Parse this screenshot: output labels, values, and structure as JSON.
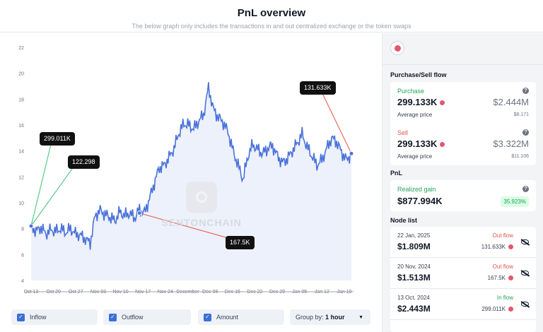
{
  "header": {
    "title": "PnL overview",
    "subtitle": "The below graph only includes the transactions in and out centralized exchange or the token swaps"
  },
  "chart_data": {
    "type": "area",
    "title": "",
    "xlabel": "",
    "ylabel": "",
    "ylim": [
      4,
      22
    ],
    "y_ticks": [
      4,
      6,
      8,
      10,
      12,
      14,
      16,
      18,
      20,
      22
    ],
    "x_ticks": [
      "Oct 13",
      "Oct 20",
      "Oct 27",
      "Nov 03",
      "Nov 10",
      "Nov 17",
      "Nov 24",
      "December",
      "Dec 08",
      "Dec 15",
      "Dec 22",
      "Dec 29",
      "Jan 05",
      "Jan 12",
      "Jan 19"
    ],
    "series": [
      {
        "values": [
          8.2,
          7.8,
          8.1,
          7.6,
          7.9,
          7.8,
          8.0,
          7.7,
          8.0,
          7.6,
          7.5,
          7.2,
          6.9,
          9.0,
          9.4,
          9.1,
          8.9,
          8.6,
          9.3,
          9.0,
          9.2,
          8.8,
          9.5,
          9.2,
          10.3,
          11.5,
          12.7,
          12.9,
          13.5,
          14.2,
          15.4,
          16.1,
          16.0,
          15.7,
          16.3,
          16.8,
          18.9,
          17.2,
          16.6,
          16.2,
          15.4,
          14.0,
          12.9,
          11.8,
          13.6,
          14.5,
          14.1,
          13.8,
          14.2,
          14.4,
          13.6,
          13.1,
          13.4,
          14.0,
          14.6,
          15.3,
          14.3,
          13.6,
          12.9,
          13.3,
          14.2,
          15.0,
          14.7,
          13.9,
          13.3,
          13.8
        ],
        "color": "#4a72d9"
      }
    ],
    "markers": [
      {
        "label": "299.011K",
        "type": "inflow",
        "color": "#5cc98b",
        "x_index": 0,
        "y": 8.2
      },
      {
        "label": "122.298",
        "type": "inflow",
        "color": "#5cc98b",
        "x_index": 0,
        "y": 8.2
      },
      {
        "label": "167.5K",
        "type": "outflow",
        "color": "#e46b63",
        "x_index": 22,
        "y": 9.2
      },
      {
        "label": "131.633K",
        "type": "outflow",
        "color": "#e46b63",
        "x_index": 65,
        "y": 13.8
      }
    ],
    "grid": false,
    "watermark": "SENTONCHAIN"
  },
  "controls": {
    "inflow": "Inflow",
    "outflow": "Outflow",
    "amount": "Amount",
    "groupby_label": "Group by:",
    "groupby_value": "1 hour"
  },
  "panel": {
    "token_icon": "token-logo-icon",
    "purchase_sell_title": "Purchase/Sell flow",
    "purchase": {
      "label": "Purchase",
      "amount": "299.133K",
      "usd": "$2.444M",
      "avg_label": "Average price",
      "avg": "$8.171"
    },
    "sell": {
      "label": "Sell",
      "amount": "299.133K",
      "usd": "$3.322M",
      "avg_label": "Average price",
      "avg": "$11.106"
    },
    "pnl_title": "PnL",
    "realized": {
      "label": "Realized gain",
      "amount": "$877.994K",
      "pct": "35.923%"
    },
    "node_title": "Node list",
    "nodes": [
      {
        "date": "22 Jan, 2025",
        "amount": "$1.809M",
        "flow": "Out flow",
        "qty": "131.633K"
      },
      {
        "date": "20 Nov, 2024",
        "amount": "$1.513M",
        "flow": "Out flow",
        "qty": "167.5K"
      },
      {
        "date": "13 Oct, 2024",
        "amount": "$2.443M",
        "flow": "In flow",
        "qty": "299.011K"
      }
    ]
  },
  "colors": {
    "accent": "#3b6fd6",
    "line": "#4a72d9",
    "inflow": "#22a35a",
    "outflow": "#e0534d"
  }
}
